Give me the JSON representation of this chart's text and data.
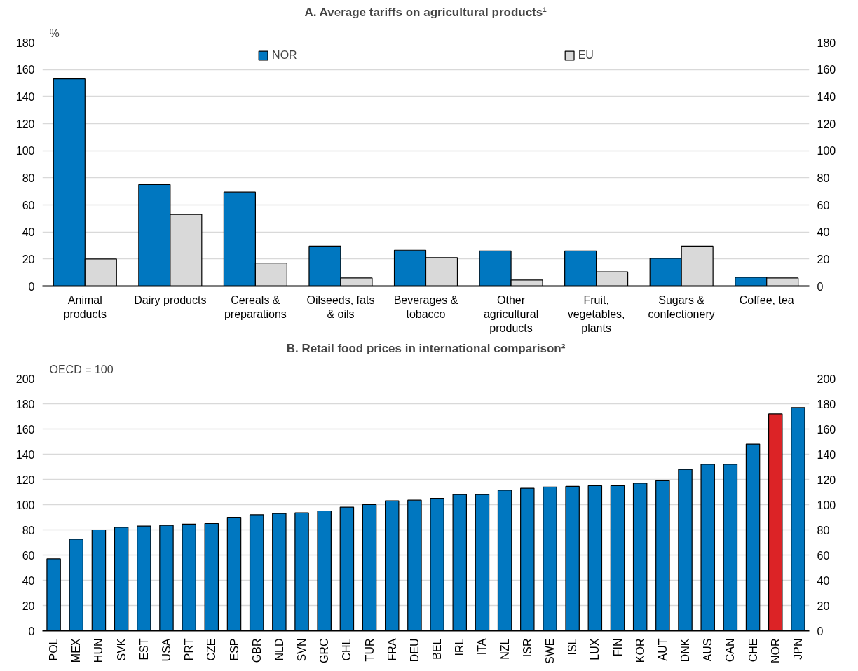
{
  "chart_data": [
    {
      "type": "bar",
      "title": "A. Average tariffs on agricultural products¹",
      "ylabel": "%",
      "categories": [
        "Animal products",
        "Dairy products",
        "Cereals & preparations",
        "Oilseeds, fats & oils",
        "Beverages & tobacco",
        "Other agricultural products",
        "Fruit, vegetables, plants",
        "Sugars & confectionery",
        "Coffee, tea"
      ],
      "series": [
        {
          "name": "NOR",
          "color": "#0077c0",
          "values": [
            153,
            75,
            69.5,
            29.5,
            26.5,
            26,
            26,
            20.5,
            6.5
          ]
        },
        {
          "name": "EU",
          "color": "#d9d9d9",
          "values": [
            20,
            53,
            17,
            6,
            21,
            4.5,
            10.5,
            29.5,
            6
          ]
        }
      ],
      "ylim": [
        0,
        180
      ],
      "yticks": [
        0,
        20,
        40,
        60,
        80,
        100,
        120,
        140,
        160,
        180
      ],
      "y2lim": [
        0,
        180
      ],
      "y2ticks": [
        0,
        20,
        40,
        60,
        80,
        100,
        120,
        140,
        160,
        180
      ],
      "grid": "y",
      "legend": "top"
    },
    {
      "type": "bar",
      "title": "B. Retail food prices in international comparison²",
      "ylabel": "OECD = 100",
      "categories": [
        "POL",
        "MEX",
        "HUN",
        "SVK",
        "EST",
        "USA",
        "PRT",
        "CZE",
        "ESP",
        "GBR",
        "NLD",
        "SVN",
        "GRC",
        "CHL",
        "TUR",
        "FRA",
        "DEU",
        "BEL",
        "IRL",
        "ITA",
        "NZL",
        "ISR",
        "SWE",
        "ISL",
        "LUX",
        "FIN",
        "KOR",
        "AUT",
        "DNK",
        "AUS",
        "CAN",
        "CHE",
        "NOR",
        "JPN"
      ],
      "values": [
        57,
        72.5,
        80,
        82,
        83,
        83.5,
        84.5,
        85,
        90,
        92,
        93,
        93.5,
        95,
        98,
        100,
        103,
        103.5,
        105,
        108,
        108,
        111.5,
        113,
        114,
        114.5,
        115,
        115,
        117,
        119,
        128,
        132,
        132,
        148,
        172,
        177
      ],
      "colors": [
        "#0077c0",
        "#0077c0",
        "#0077c0",
        "#0077c0",
        "#0077c0",
        "#0077c0",
        "#0077c0",
        "#0077c0",
        "#0077c0",
        "#0077c0",
        "#0077c0",
        "#0077c0",
        "#0077c0",
        "#0077c0",
        "#0077c0",
        "#0077c0",
        "#0077c0",
        "#0077c0",
        "#0077c0",
        "#0077c0",
        "#0077c0",
        "#0077c0",
        "#0077c0",
        "#0077c0",
        "#0077c0",
        "#0077c0",
        "#0077c0",
        "#0077c0",
        "#0077c0",
        "#0077c0",
        "#0077c0",
        "#0077c0",
        "#dc2326",
        "#0077c0"
      ],
      "ylim": [
        0,
        200
      ],
      "yticks": [
        0,
        20,
        40,
        60,
        80,
        100,
        120,
        140,
        160,
        180,
        200
      ],
      "y2lim": [
        0,
        200
      ],
      "y2ticks": [
        0,
        20,
        40,
        60,
        80,
        100,
        120,
        140,
        160,
        180,
        200
      ],
      "grid": "y"
    }
  ]
}
